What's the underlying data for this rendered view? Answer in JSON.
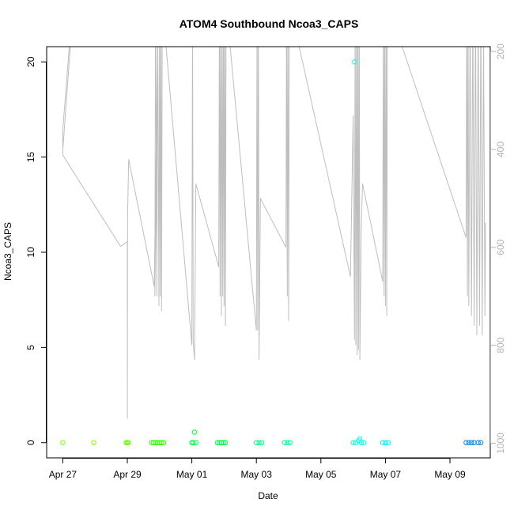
{
  "chart_data": {
    "type": "scatter",
    "title": "ATOM4 Southbound Ncoa3_CAPS",
    "xlabel": "Date",
    "ylabel": "Ncoa3_CAPS",
    "xlim": [
      "2024-04-26T12:00",
      "2024-05-10T06:00"
    ],
    "ylim": [
      -0.8,
      20.8
    ],
    "x_ticks": [
      {
        "date": "2024-04-27",
        "label": "Apr 27"
      },
      {
        "date": "2024-04-29",
        "label": "Apr 29"
      },
      {
        "date": "2024-05-01",
        "label": "May 01"
      },
      {
        "date": "2024-05-03",
        "label": "May 03"
      },
      {
        "date": "2024-05-05",
        "label": "May 05"
      },
      {
        "date": "2024-05-07",
        "label": "May 07"
      },
      {
        "date": "2024-05-09",
        "label": "May 09"
      }
    ],
    "y_ticks": [
      0,
      5,
      10,
      15,
      20
    ],
    "y2_ticks": [
      200,
      400,
      600,
      800,
      1000
    ],
    "y2lim": [
      1030,
      190
    ],
    "grid": false,
    "legend": "none",
    "line_color": "#bebebe",
    "axis_color": "#b3b3b3",
    "points": [
      {
        "x": "2024-04-27T00:00",
        "y": 0,
        "color": "#7fff00"
      },
      {
        "x": "2024-04-27T23:00",
        "y": 0,
        "color": "#80ff00"
      },
      {
        "x": "2024-04-28T23:00",
        "y": 0,
        "color": "#66ff00"
      },
      {
        "x": "2024-04-29T00:00",
        "y": 0,
        "color": "#66ff00"
      },
      {
        "x": "2024-04-29T00:45",
        "y": 0,
        "color": "#66ff00"
      },
      {
        "x": "2024-04-29T18:00",
        "y": 0,
        "color": "#33ff00"
      },
      {
        "x": "2024-04-29T19:30",
        "y": 0,
        "color": "#33ff00"
      },
      {
        "x": "2024-04-29T21:00",
        "y": 0,
        "color": "#33ff00"
      },
      {
        "x": "2024-04-29T22:30",
        "y": 0,
        "color": "#33ff00"
      },
      {
        "x": "2024-04-30T00:00",
        "y": 0,
        "color": "#33ff00"
      },
      {
        "x": "2024-04-30T01:30",
        "y": 0,
        "color": "#33ff00"
      },
      {
        "x": "2024-04-30T03:00",
        "y": 0,
        "color": "#33ff00"
      },
      {
        "x": "2024-05-01T00:00",
        "y": 0,
        "color": "#00ff33"
      },
      {
        "x": "2024-05-01T01:00",
        "y": 0,
        "color": "#00ff33"
      },
      {
        "x": "2024-05-01T02:00",
        "y": 0.55,
        "color": "#00ff33"
      },
      {
        "x": "2024-05-01T03:00",
        "y": 0,
        "color": "#00ff33"
      },
      {
        "x": "2024-05-01T19:00",
        "y": 0,
        "color": "#00ff40"
      },
      {
        "x": "2024-05-01T20:30",
        "y": 0,
        "color": "#00ff40"
      },
      {
        "x": "2024-05-01T22:00",
        "y": 0,
        "color": "#00ff40"
      },
      {
        "x": "2024-05-01T23:30",
        "y": 0,
        "color": "#00ff40"
      },
      {
        "x": "2024-05-02T01:00",
        "y": 0,
        "color": "#00ff40"
      },
      {
        "x": "2024-05-03T00:00",
        "y": 0,
        "color": "#00ff80"
      },
      {
        "x": "2024-05-03T02:00",
        "y": 0,
        "color": "#00ff80"
      },
      {
        "x": "2024-05-03T04:00",
        "y": 0,
        "color": "#00ff80"
      },
      {
        "x": "2024-05-03T21:00",
        "y": 0,
        "color": "#00ff99"
      },
      {
        "x": "2024-05-03T23:00",
        "y": 0,
        "color": "#00ff99"
      },
      {
        "x": "2024-05-04T01:00",
        "y": 0,
        "color": "#00ff99"
      },
      {
        "x": "2024-05-06T01:00",
        "y": 20,
        "color": "#00ffe6"
      },
      {
        "x": "2024-05-06T00:00",
        "y": 0,
        "color": "#00ffe6"
      },
      {
        "x": "2024-05-06T02:00",
        "y": 0,
        "color": "#00ffe6"
      },
      {
        "x": "2024-05-06T04:00",
        "y": 0.1,
        "color": "#00ffe6"
      },
      {
        "x": "2024-05-06T05:00",
        "y": 0.2,
        "color": "#00ffe6"
      },
      {
        "x": "2024-05-06T06:00",
        "y": 0,
        "color": "#00ffe6"
      },
      {
        "x": "2024-05-06T08:00",
        "y": 0,
        "color": "#00ffe6"
      },
      {
        "x": "2024-05-06T22:00",
        "y": 0,
        "color": "#00f2ff"
      },
      {
        "x": "2024-05-07T00:00",
        "y": 0,
        "color": "#00f2ff"
      },
      {
        "x": "2024-05-07T02:00",
        "y": 0,
        "color": "#00f2ff"
      },
      {
        "x": "2024-05-09T12:00",
        "y": 0,
        "color": "#0080ff"
      },
      {
        "x": "2024-05-09T14:00",
        "y": 0,
        "color": "#0080ff"
      },
      {
        "x": "2024-05-09T16:00",
        "y": 0,
        "color": "#0080ff"
      },
      {
        "x": "2024-05-09T18:00",
        "y": 0,
        "color": "#0080ff"
      },
      {
        "x": "2024-05-09T21:00",
        "y": 0,
        "color": "#0080ff"
      },
      {
        "x": "2024-05-09T23:00",
        "y": 0,
        "color": "#0080ff"
      }
    ],
    "depth_trace": [
      [
        "2024-04-27T00:00",
        400
      ],
      [
        "2024-04-27T00:01",
        360
      ],
      [
        "2024-04-27T08:00",
        80
      ],
      [
        "2024-04-27T09:00",
        60
      ],
      [
        "2024-04-27T00:02",
        400
      ],
      [
        "2024-04-27T00:03",
        412
      ],
      [
        "2024-04-28T19:00",
        598
      ],
      [
        "2024-04-29T00:00",
        588
      ],
      [
        "2024-04-29T00:05",
        950
      ],
      [
        "2024-04-29T00:10",
        540
      ],
      [
        "2024-04-29T01:00",
        420
      ],
      [
        "2024-04-29T20:00",
        680
      ],
      [
        "2024-04-29T23:00",
        120
      ],
      [
        "2024-04-29T20:30",
        700
      ],
      [
        "2024-04-29T21:00",
        100
      ],
      [
        "2024-04-29T22:00",
        700
      ],
      [
        "2024-04-29T22:30",
        100
      ],
      [
        "2024-04-29T23:30",
        720
      ],
      [
        "2024-04-30T00:00",
        100
      ],
      [
        "2024-04-30T00:30",
        700
      ],
      [
        "2024-04-30T01:00",
        100
      ],
      [
        "2024-04-30T01:30",
        730
      ],
      [
        "2024-04-30T02:00",
        100
      ],
      [
        "2024-05-01T00:00",
        800
      ],
      [
        "2024-05-01T00:30",
        120
      ],
      [
        "2024-05-01T01:00",
        790
      ],
      [
        "2024-05-01T02:00",
        830
      ],
      [
        "2024-05-01T03:00",
        470
      ],
      [
        "2024-05-01T20:00",
        640
      ],
      [
        "2024-05-01T20:30",
        100
      ],
      [
        "2024-05-01T21:00",
        700
      ],
      [
        "2024-05-01T21:30",
        100
      ],
      [
        "2024-05-01T22:00",
        740
      ],
      [
        "2024-05-01T22:30",
        100
      ],
      [
        "2024-05-01T23:00",
        700
      ],
      [
        "2024-05-01T23:30",
        100
      ],
      [
        "2024-05-02T00:00",
        720
      ],
      [
        "2024-05-02T00:30",
        100
      ],
      [
        "2024-05-02T01:00",
        760
      ],
      [
        "2024-05-02T01:30",
        100
      ],
      [
        "2024-05-03T00:00",
        770
      ],
      [
        "2024-05-03T00:30",
        100
      ],
      [
        "2024-05-03T01:00",
        770
      ],
      [
        "2024-05-03T01:30",
        100
      ],
      [
        "2024-05-03T02:00",
        830
      ],
      [
        "2024-05-03T03:00",
        500
      ],
      [
        "2024-05-03T22:00",
        600
      ],
      [
        "2024-05-03T22:30",
        100
      ],
      [
        "2024-05-03T23:00",
        700
      ],
      [
        "2024-05-03T23:30",
        100
      ],
      [
        "2024-05-04T00:00",
        750
      ],
      [
        "2024-05-04T00:30",
        100
      ],
      [
        "2024-05-05T22:00",
        660
      ],
      [
        "2024-05-06T00:00",
        330
      ],
      [
        "2024-05-06T01:00",
        790
      ],
      [
        "2024-05-06T01:30",
        100
      ],
      [
        "2024-05-06T02:00",
        800
      ],
      [
        "2024-05-06T02:30",
        100
      ],
      [
        "2024-05-06T03:00",
        820
      ],
      [
        "2024-05-06T03:30",
        100
      ],
      [
        "2024-05-06T04:00",
        810
      ],
      [
        "2024-05-06T04:30",
        100
      ],
      [
        "2024-05-06T05:00",
        830
      ],
      [
        "2024-05-06T06:00",
        560
      ],
      [
        "2024-05-06T07:00",
        470
      ],
      [
        "2024-05-06T22:00",
        670
      ],
      [
        "2024-05-06T22:30",
        100
      ],
      [
        "2024-05-06T23:00",
        700
      ],
      [
        "2024-05-06T23:30",
        100
      ],
      [
        "2024-05-07T00:00",
        720
      ],
      [
        "2024-05-07T00:30",
        100
      ],
      [
        "2024-05-07T01:00",
        740
      ],
      [
        "2024-05-07T01:30",
        100
      ],
      [
        "2024-05-09T12:00",
        580
      ],
      [
        "2024-05-09T12:30",
        100
      ],
      [
        "2024-05-09T13:00",
        700
      ],
      [
        "2024-05-09T13:30",
        100
      ],
      [
        "2024-05-09T14:00",
        720
      ],
      [
        "2024-05-09T15:00",
        100
      ],
      [
        "2024-05-09T16:00",
        740
      ],
      [
        "2024-05-09T17:00",
        100
      ],
      [
        "2024-05-09T18:00",
        760
      ],
      [
        "2024-05-09T19:00",
        100
      ],
      [
        "2024-05-09T20:00",
        780
      ],
      [
        "2024-05-09T21:00",
        100
      ],
      [
        "2024-05-09T22:00",
        760
      ],
      [
        "2024-05-09T23:00",
        100
      ],
      [
        "2024-05-10T00:00",
        780
      ],
      [
        "2024-05-10T01:00",
        160
      ],
      [
        "2024-05-10T02:00",
        740
      ],
      [
        "2024-05-10T02:30",
        550
      ]
    ]
  }
}
